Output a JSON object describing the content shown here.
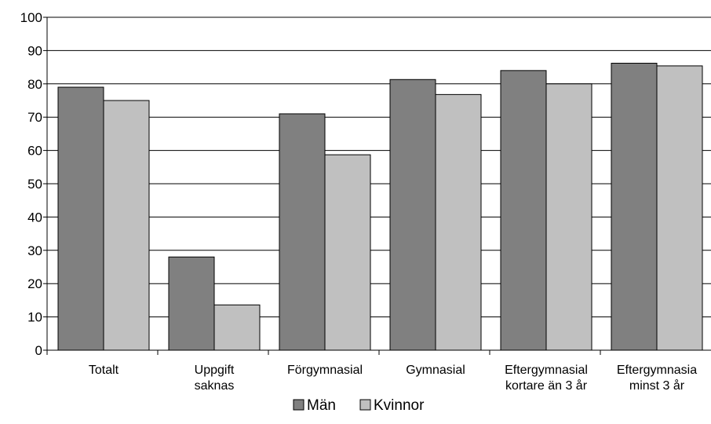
{
  "chart_data": {
    "type": "bar",
    "categories": [
      [
        "Totalt"
      ],
      [
        "Uppgift",
        "saknas"
      ],
      [
        "Förgymnasial"
      ],
      [
        "Gymnasial"
      ],
      [
        "Eftergymnasial",
        "kortare än 3 år"
      ],
      [
        "Eftergymnasia",
        "minst 3 år"
      ]
    ],
    "series": [
      {
        "name": "Män",
        "color": "#808080",
        "values": [
          79,
          28,
          71,
          81.3,
          84,
          86.2
        ]
      },
      {
        "name": "Kvinnor",
        "color": "#c0c0c0",
        "values": [
          75,
          13.6,
          58.7,
          76.8,
          80,
          85.4
        ]
      }
    ],
    "ylim": [
      0,
      100
    ],
    "yticks": [
      0,
      10,
      20,
      30,
      40,
      50,
      60,
      70,
      80,
      90,
      100
    ],
    "grid": true,
    "legend_position": "bottom-center",
    "title": "",
    "xlabel": "",
    "ylabel": ""
  }
}
